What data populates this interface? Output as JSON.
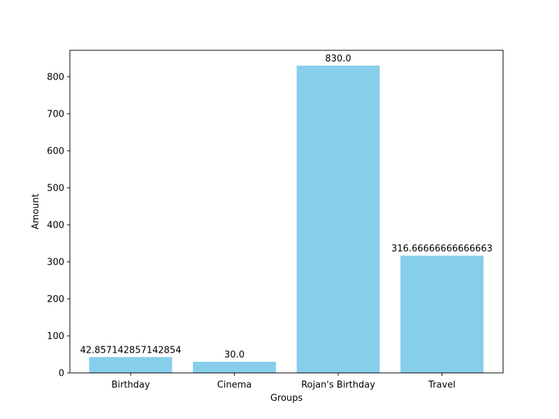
{
  "chart_data": {
    "type": "bar",
    "categories": [
      "Birthday",
      "Cinema",
      "Rojan's Birthday",
      "Travel"
    ],
    "values": [
      42.857142857142854,
      30.0,
      830.0,
      316.66666666666663
    ],
    "value_labels": [
      "42.857142857142854",
      "30.0",
      "830.0",
      "316.66666666666663"
    ],
    "title": "",
    "xlabel": "Groups",
    "ylabel": "Amount",
    "ylim": [
      0,
      871.5
    ],
    "yticks": [
      0,
      100,
      200,
      300,
      400,
      500,
      600,
      700,
      800
    ],
    "bar_color": "#87CEEB",
    "grid": false,
    "legend": "none"
  }
}
